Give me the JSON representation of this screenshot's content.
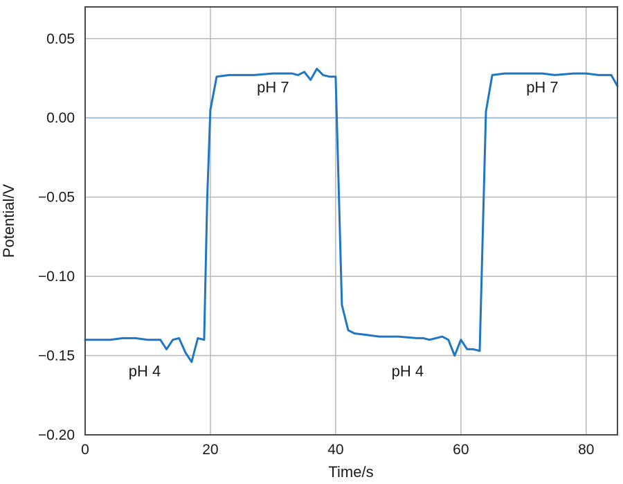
{
  "chart_data": {
    "type": "line",
    "title": "",
    "xlabel": "Time/s",
    "ylabel": "Potential/V",
    "xlim": [
      0,
      85
    ],
    "ylim": [
      -0.2,
      0.07
    ],
    "grid": true,
    "x_ticks": [
      0,
      20,
      40,
      60,
      80
    ],
    "x_tick_labels": [
      "0",
      "20",
      "40",
      "60",
      "80"
    ],
    "y_ticks": [
      0.05,
      0.0,
      -0.05,
      -0.1,
      -0.15,
      -0.2
    ],
    "y_tick_labels": [
      "0.05",
      "0.00",
      "−0.05",
      "−0.10",
      "−0.15",
      "−0.20"
    ],
    "zero_line": 0.0,
    "line_color": "#1f77c4",
    "zero_line_color": "#9fc0e0",
    "grid_color": "#b8b8b8",
    "series": [
      {
        "x": [
          0,
          2,
          4,
          6,
          8,
          10,
          12,
          13,
          14,
          15,
          16,
          17,
          18,
          19,
          19.5,
          20,
          21,
          23,
          25,
          27,
          30,
          33,
          34,
          35,
          36,
          37,
          38,
          39,
          40,
          41,
          42,
          43,
          45,
          47,
          50,
          53,
          54,
          55,
          57,
          58,
          59,
          60,
          61,
          62,
          63,
          64,
          65,
          67,
          70,
          73,
          75,
          78,
          80,
          82,
          84,
          85
        ],
        "y": [
          -0.14,
          -0.14,
          -0.14,
          -0.139,
          -0.139,
          -0.14,
          -0.14,
          -0.146,
          -0.14,
          -0.139,
          -0.148,
          -0.154,
          -0.139,
          -0.14,
          -0.05,
          0.005,
          0.026,
          0.027,
          0.027,
          0.027,
          0.028,
          0.028,
          0.027,
          0.029,
          0.024,
          0.031,
          0.027,
          0.026,
          0.026,
          -0.118,
          -0.134,
          -0.136,
          -0.137,
          -0.138,
          -0.138,
          -0.139,
          -0.139,
          -0.14,
          -0.138,
          -0.14,
          -0.15,
          -0.14,
          -0.146,
          -0.146,
          -0.147,
          0.004,
          0.027,
          0.028,
          0.028,
          0.028,
          0.027,
          0.028,
          0.028,
          0.027,
          0.027,
          0.02
        ]
      }
    ],
    "annotations": [
      {
        "text": "pH 7",
        "x": 30,
        "y": 0.016
      },
      {
        "text": "pH 4",
        "x": 9.5,
        "y": -0.163
      },
      {
        "text": "pH 4",
        "x": 51.5,
        "y": -0.163
      },
      {
        "text": "pH 7",
        "x": 73,
        "y": 0.016
      }
    ]
  }
}
